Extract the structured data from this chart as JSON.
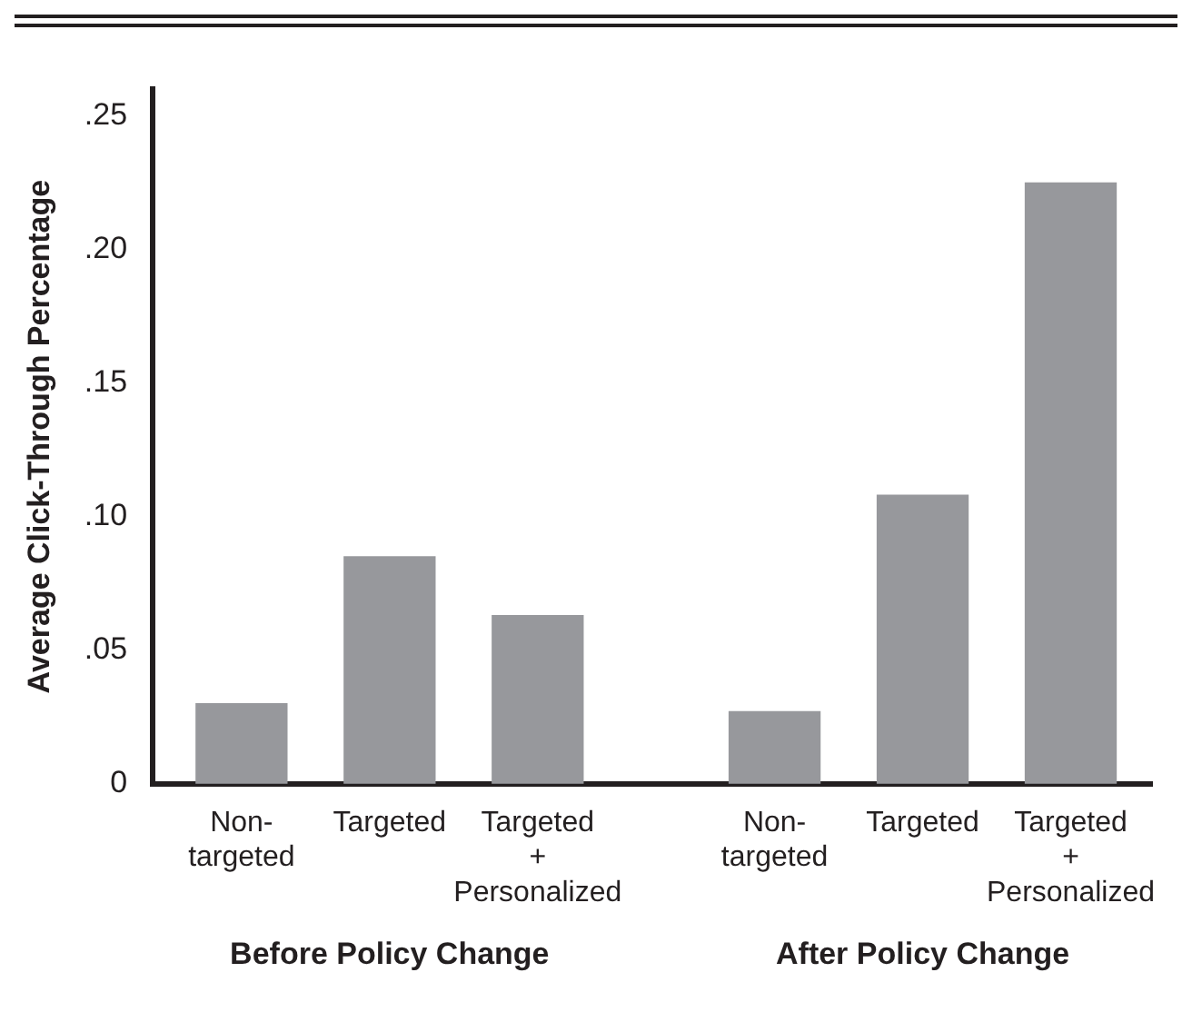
{
  "chart_data": {
    "type": "bar",
    "ylabel": "Average Click-Through Percentage",
    "categories": [
      "Non-targeted",
      "Targeted",
      "Targeted + Personalized",
      "Non-targeted",
      "Targeted",
      "Targeted + Personalized"
    ],
    "values": [
      0.03,
      0.085,
      0.063,
      0.027,
      0.108,
      0.225
    ],
    "color": "#97989c",
    "ylim": [
      0,
      0.26
    ],
    "yticks": [
      {
        "value": 0,
        "label": "0"
      },
      {
        "value": 0.05,
        "label": ".05"
      },
      {
        "value": 0.1,
        "label": ".10"
      },
      {
        "value": 0.15,
        "label": ".15"
      },
      {
        "value": 0.2,
        "label": ".20"
      },
      {
        "value": 0.25,
        "label": ".25"
      }
    ],
    "annotations": [
      "Before Policy Change",
      "After Policy Change"
    ],
    "grid": false,
    "legend": false
  }
}
